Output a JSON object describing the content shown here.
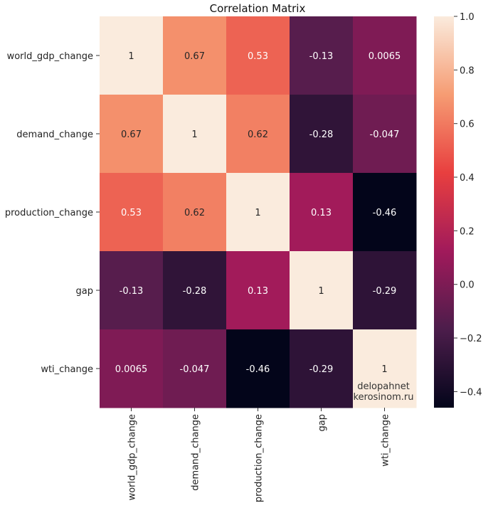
{
  "chart_data": {
    "type": "heatmap",
    "title": "Correlation Matrix",
    "row_labels": [
      "world_gdp_change",
      "demand_change",
      "production_change",
      "gap",
      "wti_change"
    ],
    "col_labels": [
      "world_gdp_change",
      "demand_change",
      "production_change",
      "gap",
      "wti_change"
    ],
    "values": [
      [
        1,
        0.67,
        0.53,
        -0.13,
        0.0065
      ],
      [
        0.67,
        1,
        0.62,
        -0.28,
        -0.047
      ],
      [
        0.53,
        0.62,
        1,
        0.13,
        -0.46
      ],
      [
        -0.13,
        -0.28,
        0.13,
        1,
        -0.29
      ],
      [
        0.0065,
        -0.047,
        -0.46,
        -0.29,
        1
      ]
    ],
    "cell_labels": [
      [
        "1",
        "0.67",
        "0.53",
        "-0.13",
        "0.0065"
      ],
      [
        "0.67",
        "1",
        "0.62",
        "-0.28",
        "-0.047"
      ],
      [
        "0.53",
        "0.62",
        "1",
        "0.13",
        "-0.46"
      ],
      [
        "-0.13",
        "-0.28",
        "0.13",
        "1",
        "-0.29"
      ],
      [
        "0.0065",
        "-0.047",
        "-0.46",
        "-0.29",
        "1"
      ]
    ],
    "colorbar": {
      "vmin": -0.46,
      "vmax": 1.0,
      "ticks": [
        1.0,
        0.8,
        0.6,
        0.4,
        0.2,
        0.0,
        -0.2,
        -0.4
      ],
      "tick_labels": [
        "1.0",
        "0.8",
        "0.6",
        "0.4",
        "0.2",
        "0.0",
        "−0.2",
        "−0.4"
      ],
      "colormap": "rocket",
      "colormap_stops": [
        "#03051a",
        "#4c1d4b",
        "#a11a5b",
        "#e83f3f",
        "#f69c73",
        "#faebdd"
      ]
    }
  },
  "watermark": {
    "line1": "delopahnet",
    "line2": "kerosinom.ru"
  }
}
